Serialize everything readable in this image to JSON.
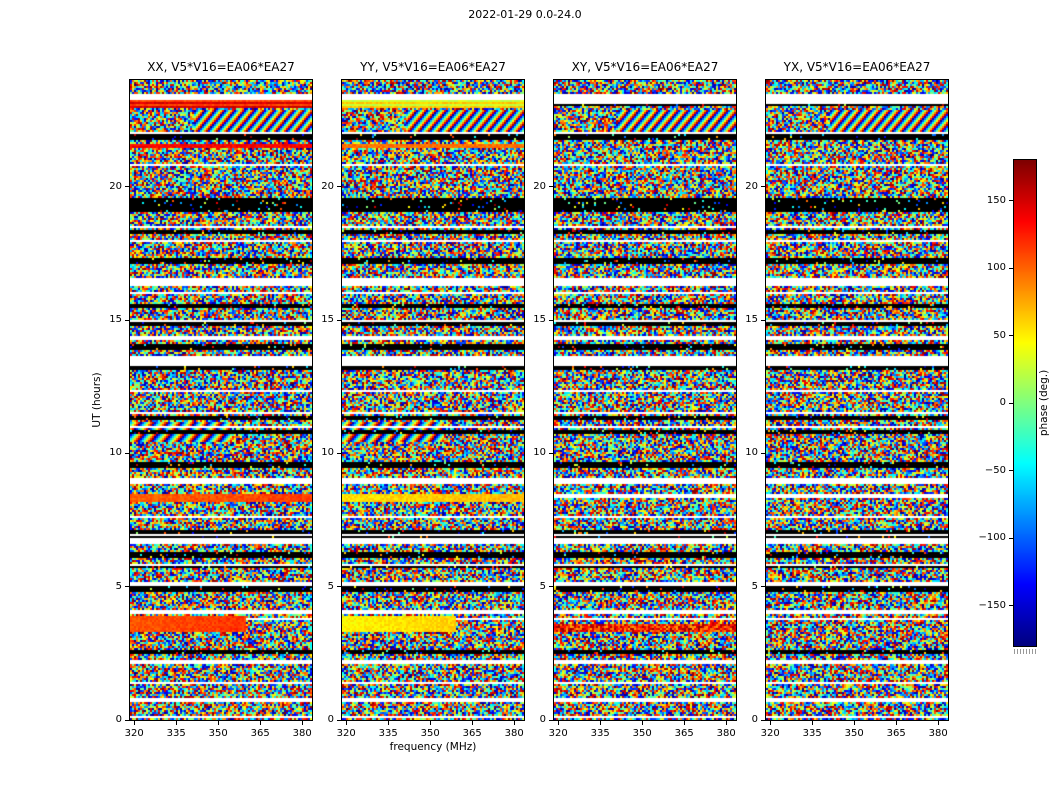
{
  "figure": {
    "title": "2022-01-29 0.0-24.0",
    "background": "#ffffff"
  },
  "chart_data": {
    "type": "heatmap",
    "title": "2022-01-29 0.0-24.0",
    "panels": [
      {
        "id": "XX",
        "title": "XX, V5*V16=EA06*EA27"
      },
      {
        "id": "YY",
        "title": "YY, V5*V16=EA06*EA27"
      },
      {
        "id": "XY",
        "title": "XY, V5*V16=EA06*EA27"
      },
      {
        "id": "YX",
        "title": "YX, V5*V16=EA06*EA27"
      }
    ],
    "x_axis": {
      "label": "frequency (MHz)",
      "range": [
        318.5,
        383.5
      ],
      "ticks": [
        320,
        335,
        350,
        365,
        380
      ]
    },
    "y_axis": {
      "label": "UT (hours)",
      "range": [
        0,
        24
      ],
      "ticks": [
        0,
        5,
        10,
        15,
        20
      ]
    },
    "colorbar": {
      "label": "phase (deg.)",
      "range": [
        -180,
        180
      ],
      "ticks": [
        150,
        100,
        50,
        0,
        -50,
        -100,
        -150
      ],
      "colormap": "jet"
    },
    "content_note": "Interferometric visibility phase vs frequency (MHz) and UT (hours) for baseline V5*V16=EA06*EA27 in four polarizations. Panels are dominated by random phase noise, segmented by thin white scan gaps and black flagged rows; a few time ranges show coherent (smooth) phase bands and diagonal fringe patterns.",
    "features": {
      "white_bands": [
        [
          23.32,
          23.5
        ],
        [
          16.33,
          16.45
        ],
        [
          13.5,
          13.64
        ],
        [
          8.95,
          9.05
        ],
        [
          6.7,
          6.8
        ],
        [
          4.02,
          4.16
        ],
        [
          2.2,
          2.28
        ],
        [
          0.72,
          0.8
        ]
      ],
      "black_bands": [
        [
          21.82,
          21.94
        ],
        [
          19.15,
          19.55
        ],
        [
          18.3,
          18.38
        ],
        [
          17.2,
          17.3
        ],
        [
          15.5,
          15.58
        ],
        [
          13.95,
          14.12
        ],
        [
          11.3,
          11.4
        ],
        [
          10.82,
          10.9
        ],
        [
          9.55,
          9.64
        ],
        [
          7.02,
          7.1
        ],
        [
          6.12,
          6.28
        ],
        [
          4.88,
          4.96
        ],
        [
          2.52,
          2.62
        ]
      ],
      "coherent_bands": [
        {
          "t": [
            22.95,
            23.25
          ],
          "phases": {
            "XX": 130,
            "YY": 45
          },
          "stripe": true
        },
        {
          "t": [
            21.45,
            21.62
          ],
          "phases": {
            "XX": 135,
            "YY": 95
          }
        },
        {
          "t": [
            8.2,
            8.48
          ],
          "phases": {
            "XX": 100,
            "YY": 55
          },
          "grad": 15
        },
        {
          "t": [
            3.32,
            3.88
          ],
          "phases": {
            "XX": 105,
            "YY": 48
          },
          "grad": 20,
          "f_end_frac": {
            "XX": 0.63,
            "YY": 0.62
          }
        },
        {
          "t": [
            3.32,
            3.6
          ],
          "phases": {
            "XY": 125
          },
          "jitter": 50
        }
      ],
      "fringe_bands": [
        {
          "t": [
            21.68,
            22.9
          ],
          "x_start_frac": 0.35,
          "x_end_frac": 1.0,
          "panels": [
            "XX",
            "YY",
            "XY",
            "YX"
          ],
          "k": [
            73,
            61
          ]
        },
        {
          "t": [
            10.45,
            11.15
          ],
          "x_start_frac": 0.0,
          "x_end_frac": 0.55,
          "panels": [
            "XX",
            "YY"
          ],
          "k": [
            53,
            47
          ]
        }
      ]
    }
  }
}
